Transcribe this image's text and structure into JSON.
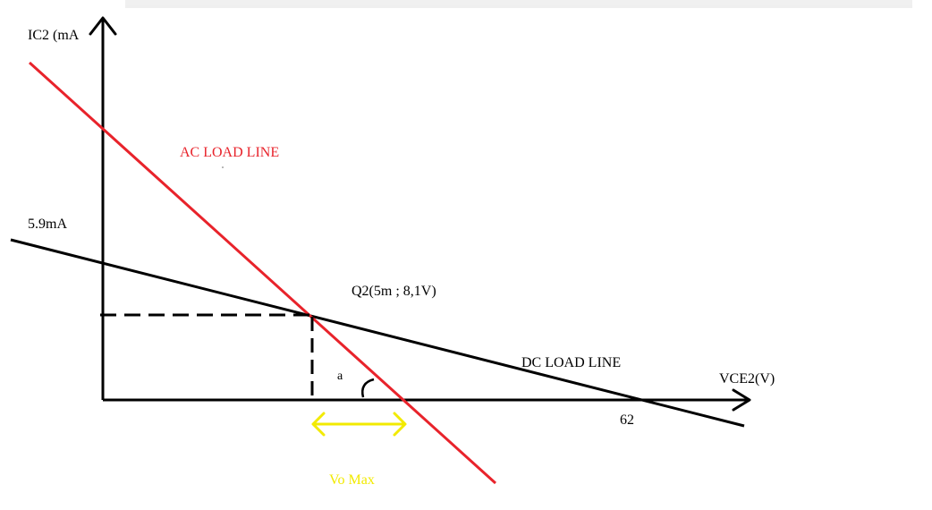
{
  "axes": {
    "y_label": "IC2 (mA",
    "x_label": "VCE2(V)"
  },
  "labels": {
    "current_tick": "5.9mA",
    "voltage_tick": "62",
    "q_point": "Q2(5m ; 8,1V)",
    "ac_load_line": "AC LOAD LINE",
    "dc_load_line": "DC LOAD LINE",
    "angle": "a",
    "vo_max": "Vo Max"
  },
  "colors": {
    "axes": "#000000",
    "dc_line": "#000000",
    "ac_line": "#e8232b",
    "vo_max": "#f2ea00",
    "text": "#000000",
    "header_shadow": "#e6e6e6"
  }
}
